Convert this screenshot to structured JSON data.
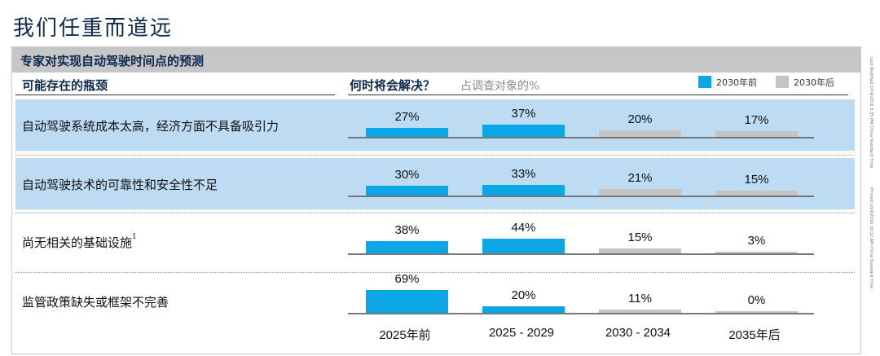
{
  "title": "我们任重而道远",
  "subtitle": "专家对实现自动驾驶时间点的预测",
  "header": {
    "left": "可能存在的瓶颈",
    "question": "何时将会解决？",
    "note": "占调查对象的%"
  },
  "legend": [
    {
      "label": "2030年前",
      "color": "#0aa6e6"
    },
    {
      "label": "2030年后",
      "color": "#c4c4c4"
    }
  ],
  "side_notes": [
    "Last Modified 1/14/2016 3:35 PM China Standard Time",
    "Printed 1/14/2016 10:12 AM China Standard Time"
  ],
  "chart_data": {
    "type": "bar",
    "unit": "%",
    "categories": [
      "2025年前",
      "2025 - 2029",
      "2030 - 2034",
      "2035年后"
    ],
    "category_groups": [
      "pre",
      "pre",
      "post",
      "post"
    ],
    "rows": [
      {
        "label": "自动驾驶系统成本太高，经济方面不具备吸引力",
        "highlight": true,
        "values": [
          27,
          37,
          20,
          17
        ],
        "value_labels": [
          "27%",
          "37%",
          "20%",
          "17%"
        ]
      },
      {
        "label": "自动驾驶技术的可靠性和安全性不足",
        "highlight": true,
        "values": [
          30,
          33,
          21,
          15
        ],
        "value_labels": [
          "30%",
          "33%",
          "21%",
          "15%"
        ]
      },
      {
        "label": "尚无相关的基础设施",
        "footnote": "1",
        "highlight": false,
        "values": [
          38,
          44,
          15,
          3
        ],
        "value_labels": [
          "38%",
          "44%",
          "15%",
          "3%"
        ]
      },
      {
        "label": "监管政策缺失或框架不完善",
        "highlight": false,
        "values": [
          69,
          20,
          11,
          0
        ],
        "value_labels": [
          "69%",
          "20%",
          "11%",
          "0%"
        ]
      }
    ]
  }
}
